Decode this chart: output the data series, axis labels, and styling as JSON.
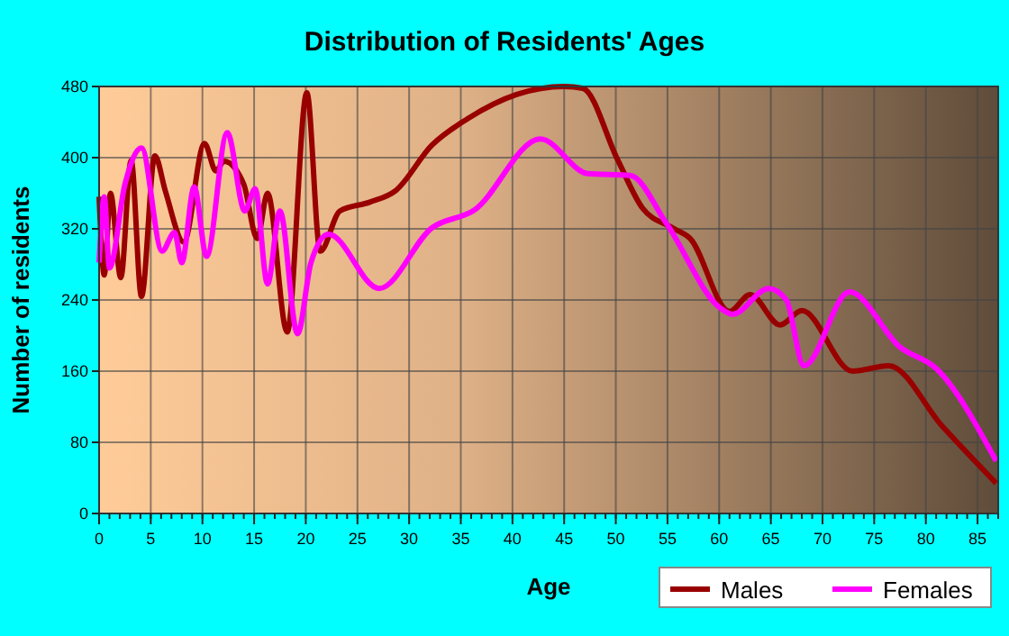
{
  "chart_data": {
    "type": "line",
    "title": "Distribution of Residents' Ages",
    "xlabel": "Age",
    "ylabel": "Number of residents",
    "xlim": [
      0,
      87
    ],
    "xticks": [
      0,
      5,
      10,
      15,
      20,
      25,
      30,
      35,
      40,
      45,
      50,
      55,
      60,
      65,
      70,
      75,
      80,
      85
    ],
    "ylim": [
      0,
      480
    ],
    "yticks": [
      0,
      80,
      160,
      240,
      320,
      400,
      480
    ],
    "grid": true,
    "legend": "bottom right",
    "series": [
      {
        "name": "Males",
        "color": "#990000",
        "x": [
          0,
          0.5,
          1.1,
          2.1,
          3.1,
          4.1,
          5.4,
          6.4,
          8.2,
          10.2,
          11.3,
          12.1,
          14,
          15.3,
          16.3,
          18.2,
          20.1,
          21.4,
          23.3,
          26.2,
          28.7,
          32.2,
          35.7,
          40.4,
          45,
          46.8,
          50.2,
          52.6,
          55.5,
          57.2,
          61,
          63,
          65.9,
          68,
          72.9,
          76.4,
          81.6,
          86.8
        ],
        "values": [
          356,
          268,
          360,
          265,
          397,
          244,
          402,
          363,
          305,
          416,
          385,
          396,
          370,
          309,
          360,
          204,
          473,
          295,
          340,
          350,
          363,
          414,
          444,
          471,
          480,
          478,
          397,
          343,
          321,
          309,
          227,
          246,
          212,
          228,
          160,
          166,
          98,
          34
        ]
      },
      {
        "name": "Females",
        "color": "#ff00ff",
        "x": [
          0,
          0.5,
          1,
          2.5,
          4.1,
          6.1,
          7.3,
          8,
          9.2,
          10.4,
          12.4,
          14.1,
          15.1,
          16.3,
          17.5,
          19.2,
          20.5,
          22.2,
          27.1,
          32.2,
          36.3,
          42.7,
          47.3,
          51.4,
          54.9,
          60.1,
          61.3,
          64.8,
          66.5,
          68.2,
          72.6,
          77.5,
          81,
          86.8
        ],
        "values": [
          282,
          356,
          276,
          370,
          411,
          295,
          316,
          282,
          367,
          289,
          428,
          340,
          365,
          258,
          340,
          202,
          282,
          314,
          253,
          321,
          341,
          421,
          382,
          380,
          326,
          231,
          224,
          253,
          240,
          166,
          249,
          187,
          163,
          59
        ]
      }
    ]
  }
}
